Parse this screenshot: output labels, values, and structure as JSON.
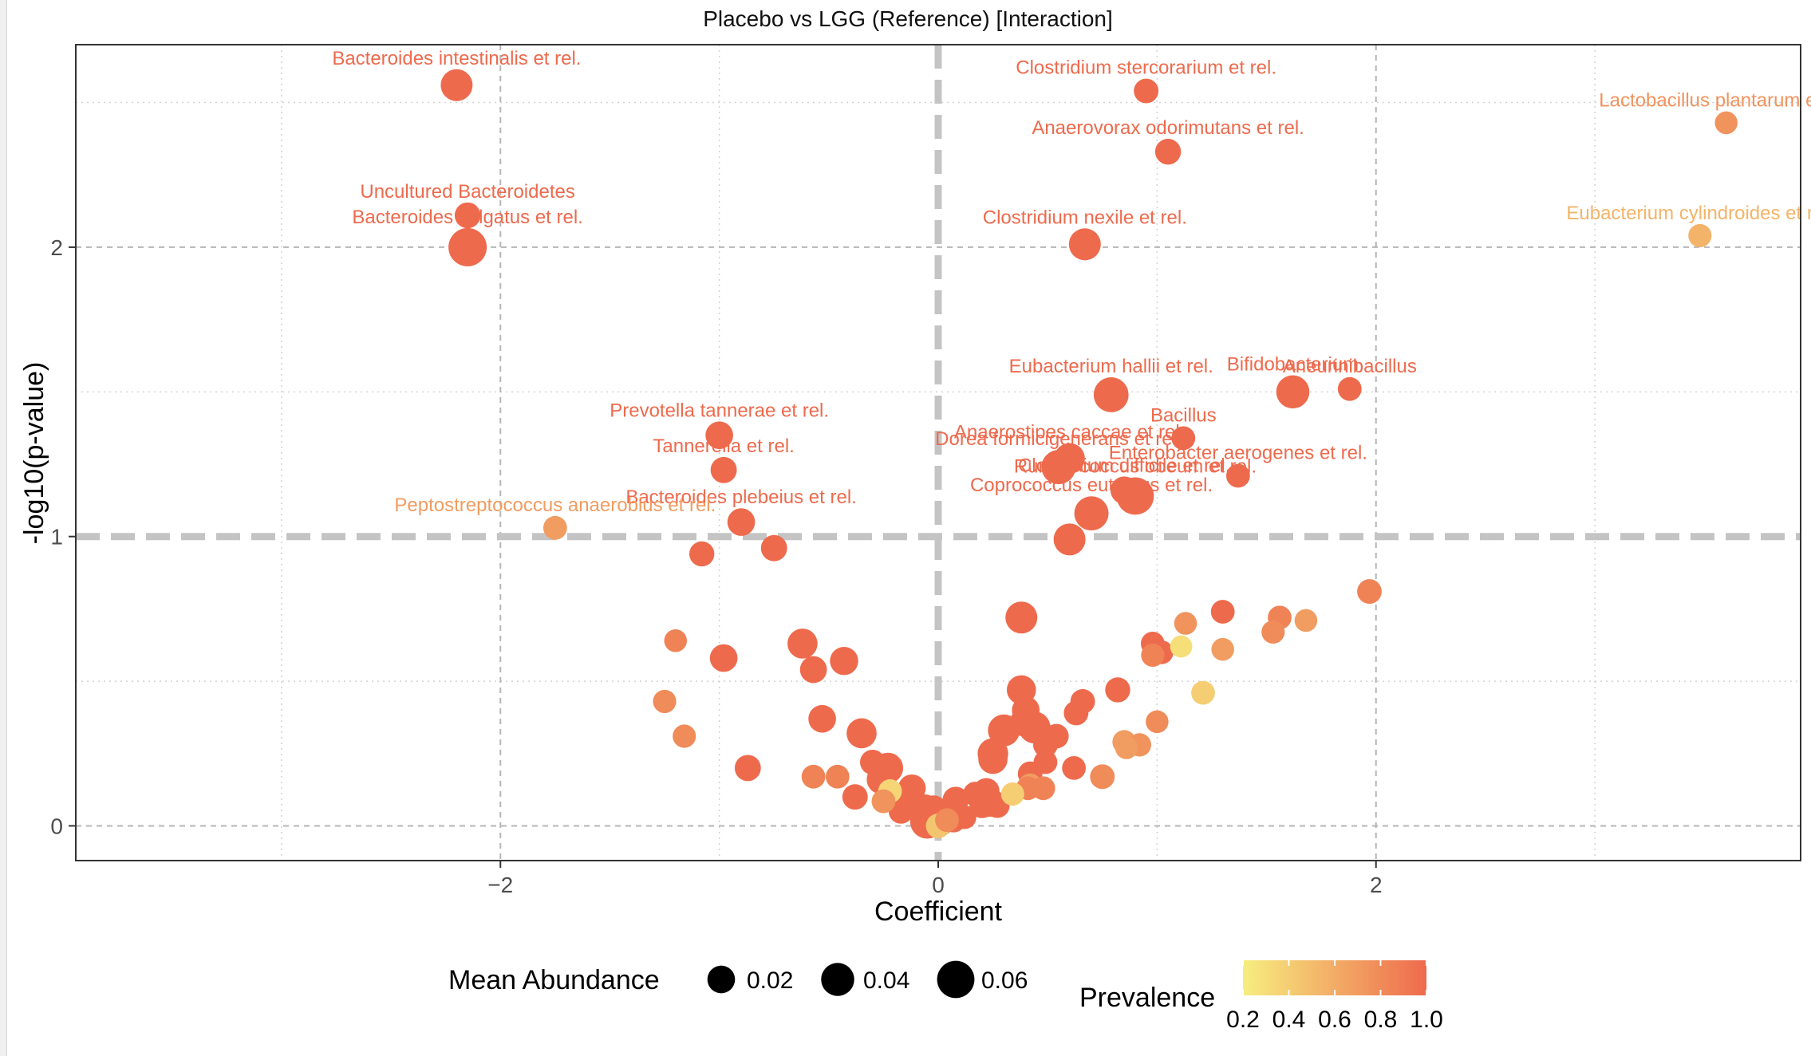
{
  "chart_data": {
    "type": "scatter",
    "title": "Placebo vs LGG (Reference) [Interaction]",
    "xlabel": "Coefficient",
    "ylabel": "-log10(p-value)",
    "xlim": [
      -3.94,
      3.94
    ],
    "ylim": [
      -0.12,
      2.7
    ],
    "x_ticks": [
      -2,
      0,
      2
    ],
    "y_ticks": [
      0,
      1,
      2
    ],
    "x_tick_labels": [
      "−2",
      "0",
      "2"
    ],
    "y_tick_labels": [
      "0",
      "1",
      "2"
    ],
    "grid": true,
    "reference_lines": {
      "x": 0,
      "y": 1
    },
    "size_legend": {
      "title": "Mean Abundance",
      "entries": [
        {
          "value": 0.02,
          "label": "0.02"
        },
        {
          "value": 0.04,
          "label": "0.04"
        },
        {
          "value": 0.06,
          "label": "0.06"
        }
      ]
    },
    "color_legend": {
      "title": "Prevalence",
      "low_color": "#f7ee7f",
      "high_color": "#ee6a4d",
      "ticks": [
        0.2,
        0.4,
        0.6,
        0.8,
        1.0
      ],
      "tick_labels": [
        "0.2",
        "0.4",
        "0.6",
        "0.8",
        "1.0"
      ]
    },
    "points": [
      {
        "label": "Bacteroides intestinalis et rel.",
        "x": -2.2,
        "y": 2.56,
        "abundance": 0.035,
        "prevalence": 1.0
      },
      {
        "label": "Clostridium stercorarium et rel.",
        "x": 0.95,
        "y": 2.54,
        "abundance": 0.012,
        "prevalence": 1.0
      },
      {
        "label": "Lactobacillus plantarum et rel.",
        "x": 3.6,
        "y": 2.43,
        "abundance": 0.008,
        "prevalence": 0.75
      },
      {
        "label": "Anaerovorax odorimutans et rel.",
        "x": 1.05,
        "y": 2.33,
        "abundance": 0.015,
        "prevalence": 1.0
      },
      {
        "label": "Uncultured Bacteroidetes",
        "x": -2.15,
        "y": 2.11,
        "abundance": 0.015,
        "prevalence": 1.0
      },
      {
        "label": "Eubacterium cylindroides et rel.",
        "x": 3.48,
        "y": 2.04,
        "abundance": 0.009,
        "prevalence": 0.55
      },
      {
        "label": "Bacteroides vulgatus et rel.",
        "x": -2.15,
        "y": 2.0,
        "abundance": 0.065,
        "prevalence": 1.0
      },
      {
        "label": "Clostridium nexile et rel.",
        "x": 0.67,
        "y": 2.01,
        "abundance": 0.035,
        "prevalence": 1.0
      },
      {
        "label": "Eubacterium hallii et rel.",
        "x": 0.79,
        "y": 1.49,
        "abundance": 0.048,
        "prevalence": 1.0
      },
      {
        "label": "Bifidobacterium",
        "x": 1.62,
        "y": 1.5,
        "abundance": 0.04,
        "prevalence": 1.0
      },
      {
        "label": "Aneurinibacillus",
        "x": 1.88,
        "y": 1.51,
        "abundance": 0.01,
        "prevalence": 1.0
      },
      {
        "label": "Prevotella tannerae et rel.",
        "x": -1.0,
        "y": 1.35,
        "abundance": 0.02,
        "prevalence": 1.0
      },
      {
        "label": "Bacillus",
        "x": 1.12,
        "y": 1.34,
        "abundance": 0.01,
        "prevalence": 1.0
      },
      {
        "label": "Anaerostipes caccae et rel.",
        "x": 0.6,
        "y": 1.27,
        "abundance": 0.03,
        "prevalence": 1.0
      },
      {
        "label": "Dorea formicigenerans et rel.",
        "x": 0.55,
        "y": 1.24,
        "abundance": 0.045,
        "prevalence": 1.0
      },
      {
        "label": "Tannerella et rel.",
        "x": -0.98,
        "y": 1.23,
        "abundance": 0.016,
        "prevalence": 1.0
      },
      {
        "label": "Enterobacter aerogenes et rel.",
        "x": 1.37,
        "y": 1.21,
        "abundance": 0.01,
        "prevalence": 1.0
      },
      {
        "label": "Ruminococcus obeum et rel.",
        "x": 0.9,
        "y": 1.14,
        "abundance": 0.06,
        "prevalence": 1.0
      },
      {
        "label": "Clostridium difficile et rel.",
        "x": 0.85,
        "y": 1.16,
        "abundance": 0.02,
        "prevalence": 1.0
      },
      {
        "label": "Coprococcus eutactus et rel.",
        "x": 0.7,
        "y": 1.08,
        "abundance": 0.045,
        "prevalence": 1.0
      },
      {
        "label": "Bacteroides plebeius et rel.",
        "x": -0.9,
        "y": 1.05,
        "abundance": 0.02,
        "prevalence": 1.0
      },
      {
        "label": "Peptostreptococcus anaerobius et rel.",
        "x": -1.75,
        "y": 1.03,
        "abundance": 0.01,
        "prevalence": 0.7
      },
      {
        "label": "",
        "x": 0.6,
        "y": 0.99,
        "abundance": 0.035,
        "prevalence": 1.0
      },
      {
        "label": "",
        "x": -0.75,
        "y": 0.96,
        "abundance": 0.016,
        "prevalence": 1.0
      },
      {
        "label": "",
        "x": -1.08,
        "y": 0.94,
        "abundance": 0.013,
        "prevalence": 1.0
      },
      {
        "label": "",
        "x": 1.97,
        "y": 0.81,
        "abundance": 0.012,
        "prevalence": 0.85
      },
      {
        "label": "",
        "x": 1.3,
        "y": 0.74,
        "abundance": 0.01,
        "prevalence": 1.0
      },
      {
        "label": "",
        "x": 0.38,
        "y": 0.72,
        "abundance": 0.035,
        "prevalence": 1.0
      },
      {
        "label": "",
        "x": 1.56,
        "y": 0.72,
        "abundance": 0.01,
        "prevalence": 0.85
      },
      {
        "label": "",
        "x": 1.68,
        "y": 0.71,
        "abundance": 0.008,
        "prevalence": 0.7
      },
      {
        "label": "",
        "x": 1.13,
        "y": 0.7,
        "abundance": 0.008,
        "prevalence": 0.75
      },
      {
        "label": "",
        "x": 1.53,
        "y": 0.67,
        "abundance": 0.009,
        "prevalence": 0.8
      },
      {
        "label": "",
        "x": -1.2,
        "y": 0.64,
        "abundance": 0.008,
        "prevalence": 0.85
      },
      {
        "label": "",
        "x": 0.98,
        "y": 0.63,
        "abundance": 0.01,
        "prevalence": 1.0
      },
      {
        "label": "",
        "x": -0.62,
        "y": 0.63,
        "abundance": 0.028,
        "prevalence": 1.0
      },
      {
        "label": "",
        "x": 1.11,
        "y": 0.62,
        "abundance": 0.007,
        "prevalence": 0.3
      },
      {
        "label": "",
        "x": 1.3,
        "y": 0.61,
        "abundance": 0.008,
        "prevalence": 0.7
      },
      {
        "label": "",
        "x": 1.02,
        "y": 0.6,
        "abundance": 0.01,
        "prevalence": 1.0
      },
      {
        "label": "",
        "x": 0.98,
        "y": 0.59,
        "abundance": 0.009,
        "prevalence": 0.85
      },
      {
        "label": "",
        "x": -0.98,
        "y": 0.58,
        "abundance": 0.02,
        "prevalence": 1.0
      },
      {
        "label": "",
        "x": -0.43,
        "y": 0.57,
        "abundance": 0.022,
        "prevalence": 1.0
      },
      {
        "label": "",
        "x": -0.57,
        "y": 0.54,
        "abundance": 0.018,
        "prevalence": 1.0
      },
      {
        "label": "",
        "x": 0.38,
        "y": 0.47,
        "abundance": 0.025,
        "prevalence": 1.0
      },
      {
        "label": "",
        "x": 0.82,
        "y": 0.47,
        "abundance": 0.013,
        "prevalence": 1.0
      },
      {
        "label": "",
        "x": 1.21,
        "y": 0.46,
        "abundance": 0.01,
        "prevalence": 0.4
      },
      {
        "label": "",
        "x": -1.25,
        "y": 0.43,
        "abundance": 0.009,
        "prevalence": 0.8
      },
      {
        "label": "",
        "x": 0.66,
        "y": 0.43,
        "abundance": 0.012,
        "prevalence": 1.0
      },
      {
        "label": "",
        "x": 0.4,
        "y": 0.4,
        "abundance": 0.02,
        "prevalence": 1.0
      },
      {
        "label": "",
        "x": 0.63,
        "y": 0.39,
        "abundance": 0.012,
        "prevalence": 1.0
      },
      {
        "label": "",
        "x": -0.53,
        "y": 0.37,
        "abundance": 0.02,
        "prevalence": 1.0
      },
      {
        "label": "",
        "x": 0.4,
        "y": 0.36,
        "abundance": 0.03,
        "prevalence": 1.0
      },
      {
        "label": "",
        "x": 1.0,
        "y": 0.36,
        "abundance": 0.008,
        "prevalence": 0.8
      },
      {
        "label": "",
        "x": 0.44,
        "y": 0.34,
        "abundance": 0.035,
        "prevalence": 1.0
      },
      {
        "label": "",
        "x": 0.3,
        "y": 0.33,
        "abundance": 0.035,
        "prevalence": 1.0
      },
      {
        "label": "",
        "x": -0.35,
        "y": 0.32,
        "abundance": 0.028,
        "prevalence": 1.0
      },
      {
        "label": "",
        "x": 0.54,
        "y": 0.31,
        "abundance": 0.012,
        "prevalence": 1.0
      },
      {
        "label": "",
        "x": -1.16,
        "y": 0.31,
        "abundance": 0.009,
        "prevalence": 0.8
      },
      {
        "label": "",
        "x": 0.85,
        "y": 0.29,
        "abundance": 0.01,
        "prevalence": 0.7
      },
      {
        "label": "",
        "x": 0.49,
        "y": 0.28,
        "abundance": 0.012,
        "prevalence": 1.0
      },
      {
        "label": "",
        "x": 0.92,
        "y": 0.28,
        "abundance": 0.009,
        "prevalence": 0.75
      },
      {
        "label": "",
        "x": 0.86,
        "y": 0.27,
        "abundance": 0.008,
        "prevalence": 0.7
      },
      {
        "label": "",
        "x": 0.25,
        "y": 0.25,
        "abundance": 0.03,
        "prevalence": 1.0
      },
      {
        "label": "",
        "x": 0.25,
        "y": 0.23,
        "abundance": 0.025,
        "prevalence": 1.0
      },
      {
        "label": "",
        "x": -0.3,
        "y": 0.22,
        "abundance": 0.013,
        "prevalence": 1.0
      },
      {
        "label": "",
        "x": 0.49,
        "y": 0.22,
        "abundance": 0.01,
        "prevalence": 1.0
      },
      {
        "label": "",
        "x": -0.87,
        "y": 0.2,
        "abundance": 0.016,
        "prevalence": 1.0
      },
      {
        "label": "",
        "x": 0.62,
        "y": 0.2,
        "abundance": 0.01,
        "prevalence": 1.0
      },
      {
        "label": "",
        "x": -0.23,
        "y": 0.2,
        "abundance": 0.03,
        "prevalence": 1.0
      },
      {
        "label": "",
        "x": 0.42,
        "y": 0.18,
        "abundance": 0.012,
        "prevalence": 1.0
      },
      {
        "label": "",
        "x": -0.57,
        "y": 0.17,
        "abundance": 0.01,
        "prevalence": 0.85
      },
      {
        "label": "",
        "x": -0.46,
        "y": 0.17,
        "abundance": 0.01,
        "prevalence": 0.85
      },
      {
        "label": "",
        "x": 0.75,
        "y": 0.17,
        "abundance": 0.012,
        "prevalence": 0.8
      },
      {
        "label": "",
        "x": -0.26,
        "y": 0.16,
        "abundance": 0.025,
        "prevalence": 1.0
      },
      {
        "label": "",
        "x": 0.42,
        "y": 0.14,
        "abundance": 0.01,
        "prevalence": 0.7
      },
      {
        "label": "",
        "x": -0.12,
        "y": 0.13,
        "abundance": 0.02,
        "prevalence": 1.0
      },
      {
        "label": "",
        "x": 0.41,
        "y": 0.13,
        "abundance": 0.01,
        "prevalence": 0.85
      },
      {
        "label": "",
        "x": 0.48,
        "y": 0.13,
        "abundance": 0.01,
        "prevalence": 0.85
      },
      {
        "label": "",
        "x": -0.22,
        "y": 0.12,
        "abundance": 0.01,
        "prevalence": 0.35
      },
      {
        "label": "",
        "x": 0.22,
        "y": 0.12,
        "abundance": 0.016,
        "prevalence": 1.0
      },
      {
        "label": "",
        "x": 0.17,
        "y": 0.11,
        "abundance": 0.012,
        "prevalence": 1.0
      },
      {
        "label": "",
        "x": 0.34,
        "y": 0.11,
        "abundance": 0.009,
        "prevalence": 0.4
      },
      {
        "label": "",
        "x": -0.38,
        "y": 0.1,
        "abundance": 0.014,
        "prevalence": 1.0
      },
      {
        "label": "",
        "x": -0.18,
        "y": 0.09,
        "abundance": 0.02,
        "prevalence": 1.0
      },
      {
        "label": "",
        "x": -0.25,
        "y": 0.085,
        "abundance": 0.01,
        "prevalence": 0.75
      },
      {
        "label": "",
        "x": 0.08,
        "y": 0.09,
        "abundance": 0.016,
        "prevalence": 1.0
      },
      {
        "label": "",
        "x": 0.24,
        "y": 0.08,
        "abundance": 0.022,
        "prevalence": 1.0
      },
      {
        "label": "",
        "x": 0.2,
        "y": 0.07,
        "abundance": 0.013,
        "prevalence": 1.0
      },
      {
        "label": "",
        "x": 0.27,
        "y": 0.07,
        "abundance": 0.012,
        "prevalence": 1.0
      },
      {
        "label": "",
        "x": -0.06,
        "y": 0.06,
        "abundance": 0.022,
        "prevalence": 1.0
      },
      {
        "label": "",
        "x": -0.02,
        "y": 0.06,
        "abundance": 0.016,
        "prevalence": 1.0
      },
      {
        "label": "",
        "x": -0.17,
        "y": 0.05,
        "abundance": 0.012,
        "prevalence": 1.0
      },
      {
        "label": "",
        "x": 0.12,
        "y": 0.03,
        "abundance": 0.01,
        "prevalence": 1.0
      },
      {
        "label": "",
        "x": 0.07,
        "y": 0.02,
        "abundance": 0.012,
        "prevalence": 1.0
      },
      {
        "label": "",
        "x": 0.04,
        "y": 0.02,
        "abundance": 0.01,
        "prevalence": 0.8
      },
      {
        "label": "",
        "x": -0.05,
        "y": 0.015,
        "abundance": 0.045,
        "prevalence": 1.0
      },
      {
        "label": "",
        "x": 0.01,
        "y": 0.01,
        "abundance": 0.016,
        "prevalence": 1.0
      },
      {
        "label": "",
        "x": 0.0,
        "y": 0.0,
        "abundance": 0.012,
        "prevalence": 0.45
      }
    ]
  }
}
